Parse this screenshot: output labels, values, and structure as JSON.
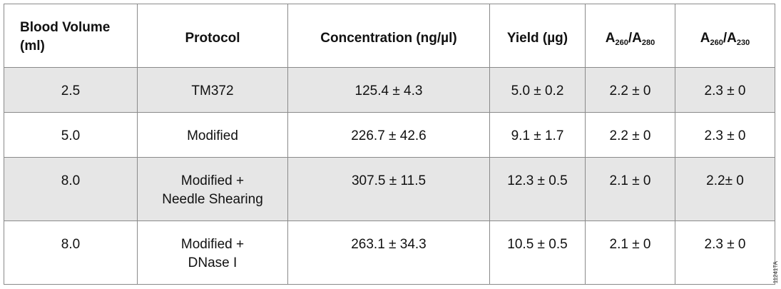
{
  "table": {
    "headers": {
      "blood_volume": "Blood Volume (ml)",
      "protocol": "Protocol",
      "concentration": "Concentration (ng/µl)",
      "yield": "Yield (µg)",
      "ratio_280": {
        "base": "A",
        "sub1": "260",
        "slash": "/A",
        "sub2": "280"
      },
      "ratio_230": {
        "base": "A",
        "sub1": "260",
        "slash": "/A",
        "sub2": "230"
      }
    },
    "rows": [
      {
        "blood_volume": "2.5",
        "protocol_line1": "TM372",
        "protocol_line2": "",
        "concentration": "125.4 ± 4.3",
        "yield": "5.0 ± 0.2",
        "a260_280": "2.2 ± 0",
        "a260_230": "2.3 ± 0"
      },
      {
        "blood_volume": "5.0",
        "protocol_line1": "Modified",
        "protocol_line2": "",
        "concentration": "226.7 ± 42.6",
        "yield": "9.1 ± 1.7",
        "a260_280": "2.2 ± 0",
        "a260_230": "2.3 ± 0"
      },
      {
        "blood_volume": "8.0",
        "protocol_line1": "Modified +",
        "protocol_line2": "Needle Shearing",
        "concentration": "307.5 ± 11.5",
        "yield": "12.3 ± 0.5",
        "a260_280": "2.1 ± 0",
        "a260_230": "2.2± 0"
      },
      {
        "blood_volume": "8.0",
        "protocol_line1": "Modified +",
        "protocol_line2": "DNase I",
        "concentration": "263.1 ± 34.3",
        "yield": "10.5 ± 0.5",
        "a260_280": "2.1 ± 0",
        "a260_230": "2.3 ± 0"
      }
    ]
  },
  "figure_code": "11241TA",
  "colors": {
    "shaded_row": "#e6e6e6",
    "border": "#8a8a8a",
    "text": "#111111"
  }
}
